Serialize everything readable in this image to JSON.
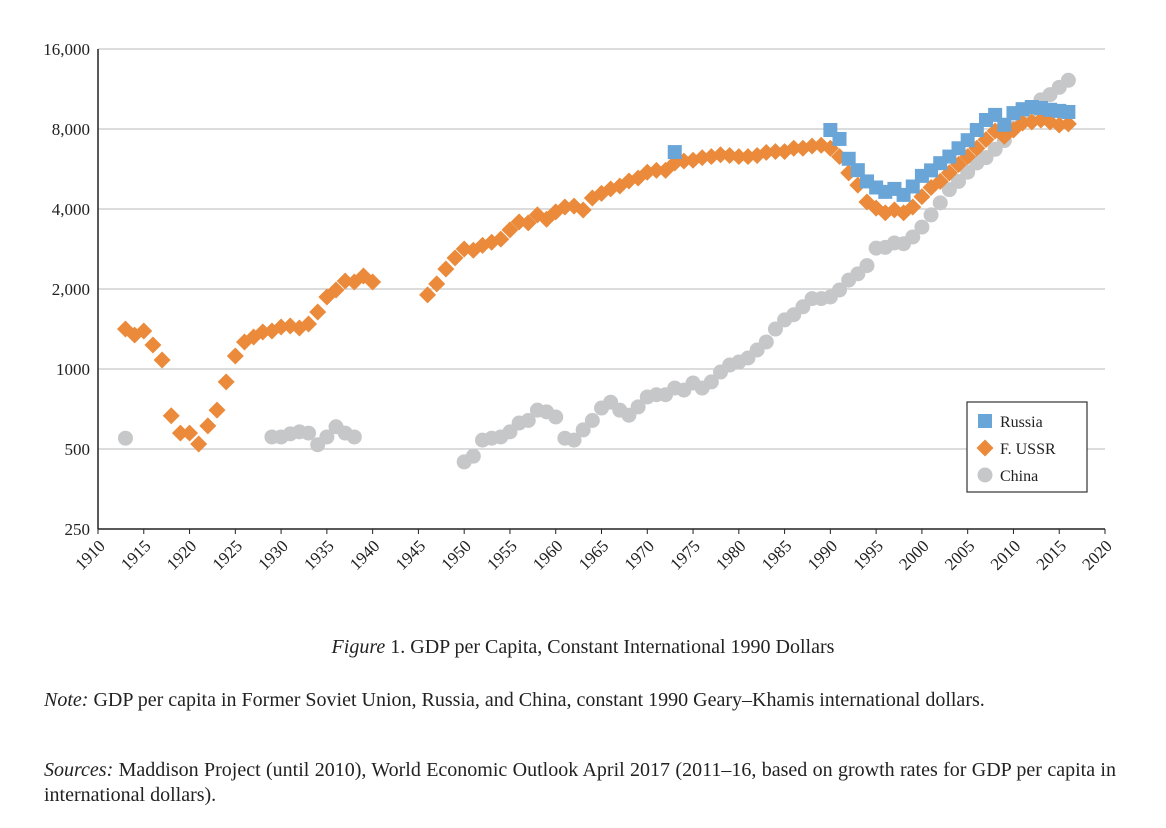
{
  "chart_data": {
    "type": "scatter",
    "title": "",
    "xlabel": "",
    "ylabel": "",
    "yscale": "log2",
    "ylim": [
      250,
      16000
    ],
    "xlim": [
      1910,
      2020
    ],
    "grid": true,
    "legend_position": "bottom-right",
    "yticks": [
      250,
      500,
      1000,
      2000,
      4000,
      8000,
      16000
    ],
    "ytick_labels": [
      "250",
      "500",
      "1000",
      "2,000",
      "4,000",
      "8,000",
      "16,000"
    ],
    "xticks": [
      1910,
      1915,
      1920,
      1925,
      1930,
      1935,
      1940,
      1945,
      1950,
      1955,
      1960,
      1965,
      1970,
      1975,
      1980,
      1985,
      1990,
      1995,
      2000,
      2005,
      2010,
      2015,
      2020
    ],
    "series": [
      {
        "name": "Russia",
        "marker": "square",
        "color": "#6aa5d8",
        "x": [
          1973,
          1990,
          1991,
          1992,
          1993,
          1994,
          1995,
          1996,
          1997,
          1998,
          1999,
          2000,
          2001,
          2002,
          2003,
          2004,
          2005,
          2006,
          2007,
          2008,
          2009,
          2010,
          2011,
          2012,
          2013,
          2014,
          2015,
          2016
        ],
        "y": [
          6550,
          7930,
          7340,
          6180,
          5600,
          5080,
          4820,
          4640,
          4760,
          4520,
          4860,
          5330,
          5590,
          5950,
          6300,
          6770,
          7260,
          7930,
          8650,
          9040,
          8300,
          9180,
          9500,
          9680,
          9600,
          9450,
          9360,
          9270
        ]
      },
      {
        "name": "F. USSR",
        "marker": "diamond",
        "color": "#ea8a3a",
        "x": [
          1913,
          1914,
          1915,
          1916,
          1917,
          1918,
          1919,
          1920,
          1921,
          1922,
          1923,
          1924,
          1925,
          1926,
          1927,
          1928,
          1929,
          1930,
          1931,
          1932,
          1933,
          1934,
          1935,
          1936,
          1937,
          1938,
          1939,
          1940,
          1946,
          1947,
          1948,
          1949,
          1950,
          1951,
          1952,
          1953,
          1954,
          1955,
          1956,
          1957,
          1958,
          1959,
          1960,
          1961,
          1962,
          1963,
          1964,
          1965,
          1966,
          1967,
          1968,
          1969,
          1970,
          1971,
          1972,
          1973,
          1974,
          1975,
          1976,
          1977,
          1978,
          1979,
          1980,
          1981,
          1982,
          1983,
          1984,
          1985,
          1986,
          1987,
          1988,
          1989,
          1990,
          1991,
          1992,
          1993,
          1994,
          1995,
          1996,
          1997,
          1998,
          1999,
          2000,
          2001,
          2002,
          2003,
          2004,
          2005,
          2006,
          2007,
          2008,
          2009,
          2010,
          2011,
          2012,
          2013,
          2014,
          2015,
          2016
        ],
        "y": [
          1414,
          1342,
          1390,
          1231,
          1081,
          667,
          574,
          574,
          522,
          611,
          700,
          894,
          1119,
          1264,
          1320,
          1378,
          1390,
          1439,
          1451,
          1427,
          1477,
          1639,
          1866,
          1983,
          2144,
          2125,
          2238,
          2125,
          1900,
          2090,
          2378,
          2618,
          2828,
          2797,
          2918,
          3000,
          3080,
          3338,
          3576,
          3546,
          3800,
          3660,
          3900,
          4070,
          4100,
          3966,
          4400,
          4580,
          4760,
          4880,
          5100,
          5230,
          5500,
          5590,
          5590,
          5960,
          6060,
          6100,
          6240,
          6300,
          6400,
          6360,
          6300,
          6300,
          6360,
          6530,
          6580,
          6580,
          6770,
          6770,
          6900,
          6950,
          6770,
          6300,
          5470,
          4920,
          4250,
          4030,
          3870,
          3970,
          3870,
          4070,
          4450,
          4820,
          5080,
          5470,
          5880,
          6300,
          6770,
          7300,
          7860,
          7500,
          7930,
          8430,
          8500,
          8650,
          8500,
          8280,
          8360
        ]
      },
      {
        "name": "China",
        "marker": "circle",
        "color": "#c6c7c9",
        "x": [
          1913,
          1929,
          1930,
          1931,
          1932,
          1933,
          1934,
          1935,
          1936,
          1937,
          1938,
          1950,
          1951,
          1952,
          1953,
          1954,
          1955,
          1956,
          1957,
          1958,
          1959,
          1960,
          1961,
          1962,
          1963,
          1964,
          1965,
          1966,
          1967,
          1968,
          1969,
          1970,
          1971,
          1972,
          1973,
          1974,
          1975,
          1976,
          1977,
          1978,
          1979,
          1980,
          1981,
          1982,
          1983,
          1984,
          1985,
          1986,
          1987,
          1988,
          1989,
          1990,
          1991,
          1992,
          1993,
          1994,
          1995,
          1996,
          1997,
          1998,
          1999,
          2000,
          2001,
          2002,
          2003,
          2004,
          2005,
          2006,
          2007,
          2008,
          2009,
          2010,
          2011,
          2012,
          2013,
          2014,
          2015,
          2016
        ],
        "y": [
          549,
          555,
          555,
          570,
          580,
          574,
          519,
          555,
          606,
          574,
          555,
          447,
          470,
          540,
          549,
          555,
          580,
          626,
          640,
          700,
          690,
          660,
          549,
          540,
          590,
          640,
          713,
          750,
          700,
          670,
          720,
          785,
          800,
          800,
          848,
          833,
          886,
          848,
          894,
          974,
          1035,
          1062,
          1100,
          1179,
          1264,
          1414,
          1530,
          1600,
          1714,
          1840,
          1840,
          1866,
          1983,
          2160,
          2280,
          2450,
          2850,
          2870,
          2980,
          2960,
          3140,
          3420,
          3800,
          4220,
          4730,
          5080,
          5500,
          5960,
          6240,
          6710,
          7240,
          8070,
          8650,
          9440,
          10300,
          10780,
          11480,
          12200
        ]
      }
    ]
  },
  "caption": {
    "label": "Figure",
    "text": " 1. GDP per Capita, Constant International 1990 Dollars"
  },
  "note": {
    "label": "Note:",
    "text": " GDP per capita in Former Soviet Union, Russia, and China, constant 1990 Geary–Khamis international dollars."
  },
  "sources": {
    "label": "Sources:",
    "text": " Maddison Project (until 2010), World Economic Outlook April 2017 (2011–16, based on growth rates for GDP per capita in international dollars)."
  }
}
